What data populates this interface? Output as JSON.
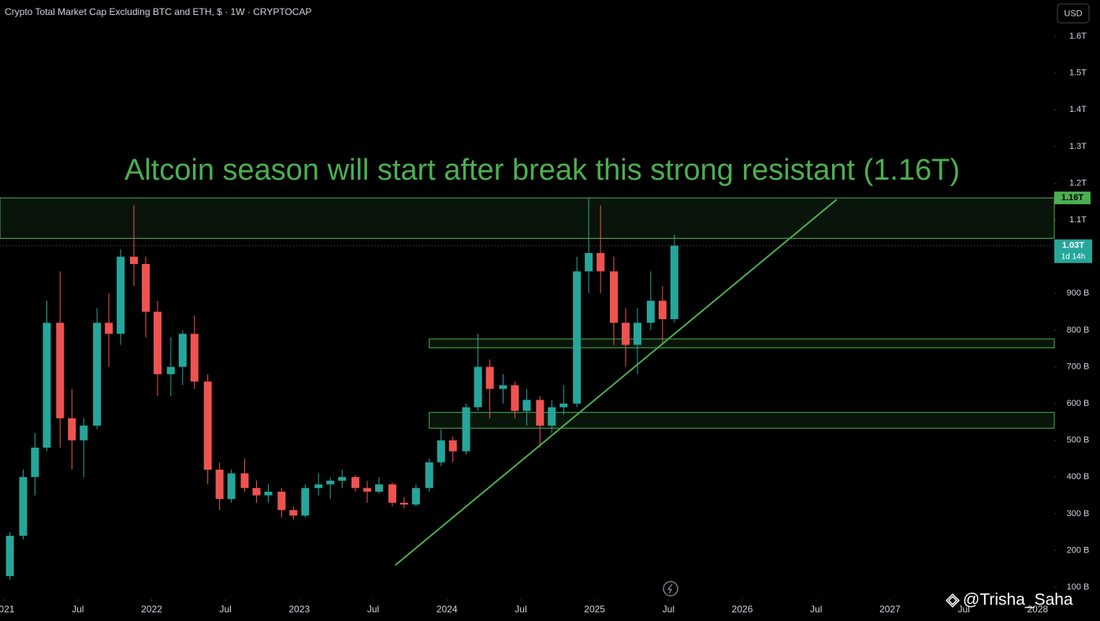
{
  "header": {
    "symbol_title": "Crypto Total Market Cap Excluding BTC and ETH, $ · 1W · CRYPTOCAP",
    "currency": "USD"
  },
  "chart_data": {
    "type": "candlestick",
    "annotation": "Altcoin season will start after break this strong resistant (1.16T)",
    "up_color": "#26a69a",
    "down_color": "#ef5350",
    "x": [
      2021.04,
      2021.13,
      2021.21,
      2021.29,
      2021.38,
      2021.46,
      2021.54,
      2021.63,
      2021.71,
      2021.79,
      2021.88,
      2021.96,
      2022.04,
      2022.13,
      2022.21,
      2022.29,
      2022.38,
      2022.46,
      2022.54,
      2022.63,
      2022.71,
      2022.79,
      2022.88,
      2022.96,
      2023.04,
      2023.13,
      2023.21,
      2023.29,
      2023.38,
      2023.46,
      2023.54,
      2023.63,
      2023.71,
      2023.79,
      2023.88,
      2023.96,
      2024.04,
      2024.13,
      2024.21,
      2024.29,
      2024.38,
      2024.46,
      2024.54,
      2024.63,
      2024.71,
      2024.79,
      2024.88,
      2024.96,
      2025.04,
      2025.13,
      2025.21,
      2025.29,
      2025.38,
      2025.46,
      2025.54
    ],
    "open": [
      130,
      240,
      400,
      480,
      820,
      560,
      500,
      540,
      820,
      790,
      1000,
      980,
      850,
      680,
      700,
      790,
      660,
      420,
      340,
      410,
      370,
      350,
      360,
      310,
      295,
      370,
      380,
      390,
      400,
      370,
      360,
      380,
      330,
      325,
      370,
      440,
      500,
      470,
      590,
      700,
      640,
      650,
      580,
      610,
      540,
      590,
      600,
      960,
      1010,
      960,
      820,
      760,
      820,
      880,
      830
    ],
    "high": [
      250,
      420,
      520,
      880,
      960,
      640,
      560,
      860,
      900,
      1020,
      1140,
      1000,
      880,
      780,
      800,
      840,
      680,
      440,
      420,
      450,
      390,
      380,
      370,
      320,
      380,
      410,
      400,
      420,
      405,
      390,
      400,
      385,
      345,
      380,
      450,
      530,
      510,
      600,
      790,
      720,
      680,
      660,
      640,
      620,
      610,
      650,
      1000,
      1160,
      1140,
      1000,
      860,
      860,
      960,
      920,
      1060
    ],
    "low": [
      120,
      230,
      350,
      470,
      480,
      420,
      400,
      530,
      700,
      760,
      920,
      780,
      620,
      620,
      650,
      640,
      380,
      310,
      330,
      360,
      330,
      330,
      290,
      285,
      290,
      350,
      340,
      370,
      360,
      330,
      355,
      320,
      315,
      320,
      360,
      430,
      440,
      460,
      580,
      560,
      600,
      560,
      540,
      480,
      520,
      570,
      590,
      900,
      900,
      760,
      700,
      680,
      800,
      760,
      820
    ],
    "close": [
      240,
      400,
      480,
      820,
      560,
      500,
      540,
      820,
      790,
      1000,
      980,
      850,
      680,
      700,
      790,
      660,
      420,
      340,
      410,
      370,
      350,
      360,
      310,
      295,
      370,
      380,
      390,
      400,
      370,
      360,
      380,
      330,
      325,
      370,
      440,
      500,
      470,
      590,
      700,
      640,
      650,
      580,
      610,
      540,
      590,
      600,
      960,
      1010,
      960,
      820,
      760,
      820,
      880,
      830,
      1030
    ],
    "xlim": [
      2020.973,
      2028.113
    ],
    "xticks": [
      {
        "value": 2021,
        "label": "2021"
      },
      {
        "value": 2021.5,
        "label": "Jul"
      },
      {
        "value": 2022,
        "label": "2022"
      },
      {
        "value": 2022.5,
        "label": "Jul"
      },
      {
        "value": 2023,
        "label": "2023"
      },
      {
        "value": 2023.5,
        "label": "Jul"
      },
      {
        "value": 2024,
        "label": "2024"
      },
      {
        "value": 2024.5,
        "label": "Jul"
      },
      {
        "value": 2025,
        "label": "2025"
      },
      {
        "value": 2025.5,
        "label": "Jul"
      },
      {
        "value": 2026,
        "label": "2026"
      },
      {
        "value": 2026.5,
        "label": "Jul"
      },
      {
        "value": 2027,
        "label": "2027"
      },
      {
        "value": 2027.5,
        "label": "Jul"
      },
      {
        "value": 2028,
        "label": "2028"
      }
    ],
    "ylim": [
      68,
      1699
    ],
    "yticks": [
      {
        "value": 1600,
        "label": "1.6T"
      },
      {
        "value": 1500,
        "label": "1.5T"
      },
      {
        "value": 1400,
        "label": "1.4T"
      },
      {
        "value": 1300,
        "label": "1.3T"
      },
      {
        "value": 1200,
        "label": "1.2T"
      },
      {
        "value": 1100,
        "label": "1.1T"
      },
      {
        "value": 900,
        "label": "900 B"
      },
      {
        "value": 800,
        "label": "800 B"
      },
      {
        "value": 700,
        "label": "700 B"
      },
      {
        "value": 600,
        "label": "600 B"
      },
      {
        "value": 500,
        "label": "500 B"
      },
      {
        "value": 400,
        "label": "400 B"
      },
      {
        "value": 300,
        "label": "300 B"
      },
      {
        "value": 200,
        "label": "200 B"
      },
      {
        "value": 100,
        "label": "100 B"
      }
    ],
    "zones": [
      {
        "top": 1160,
        "bottom": 1050,
        "x_start": 2020.973
      },
      {
        "top": 776,
        "bottom": 752,
        "x_start": 2023.88
      },
      {
        "top": 576,
        "bottom": 533,
        "x_start": 2023.88
      }
    ],
    "trendline": {
      "x": [
        2023.65,
        2026.64
      ],
      "y": [
        160,
        1156
      ]
    },
    "resistance_label": {
      "value": 1160,
      "label": "1.16T"
    },
    "last_price": {
      "value": 1030,
      "label": "1.03T"
    },
    "countdown": "1d 14h"
  },
  "watermark": "@Trisha_Saha"
}
